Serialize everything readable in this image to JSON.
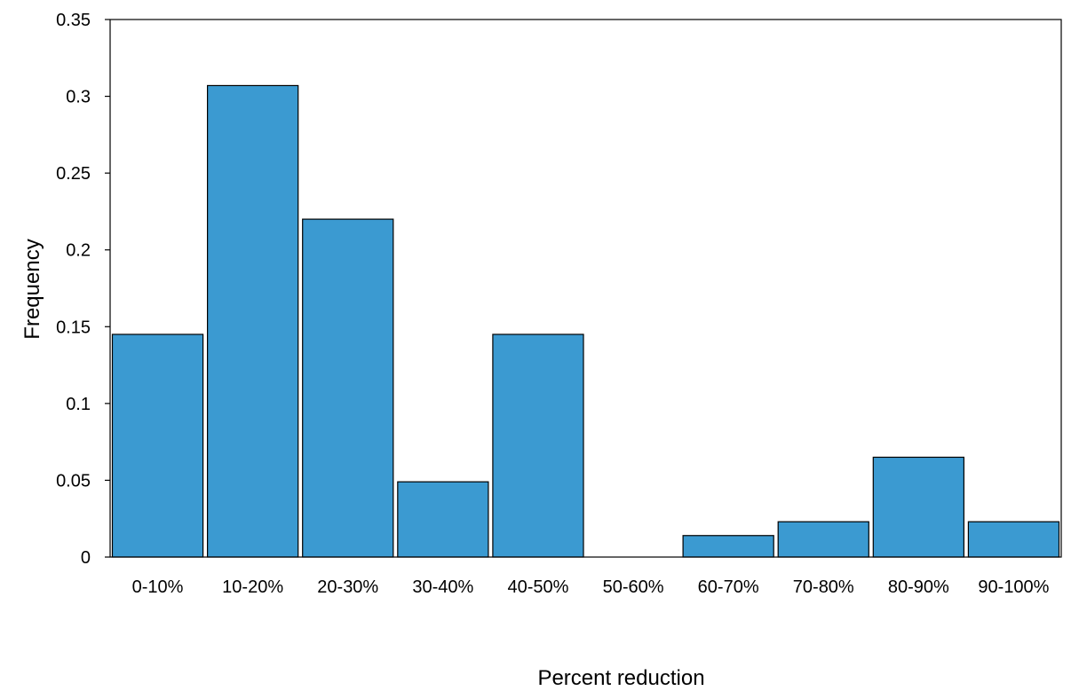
{
  "chart_data": {
    "type": "bar",
    "title": "",
    "xlabel": "Percent reduction",
    "ylabel": "Frequency",
    "categories": [
      "0-10%",
      "10-20%",
      "20-30%",
      "30-40%",
      "40-50%",
      "50-60%",
      "60-70%",
      "70-80%",
      "80-90%",
      "90-100%"
    ],
    "values": [
      0.145,
      0.307,
      0.22,
      0.049,
      0.145,
      0.0,
      0.014,
      0.023,
      0.065,
      0.023
    ],
    "ylim": [
      0,
      0.35
    ],
    "yticks": [
      0,
      0.05,
      0.1,
      0.15,
      0.2,
      0.25,
      0.3,
      0.35
    ],
    "ytick_labels": [
      "0",
      "0.05",
      "0.1",
      "0.15",
      "0.2",
      "0.25",
      "0.3",
      "0.35"
    ],
    "bar_color": "#3b9ad1",
    "bar_edge_color": "#000000",
    "grid": false,
    "legend": "none"
  }
}
